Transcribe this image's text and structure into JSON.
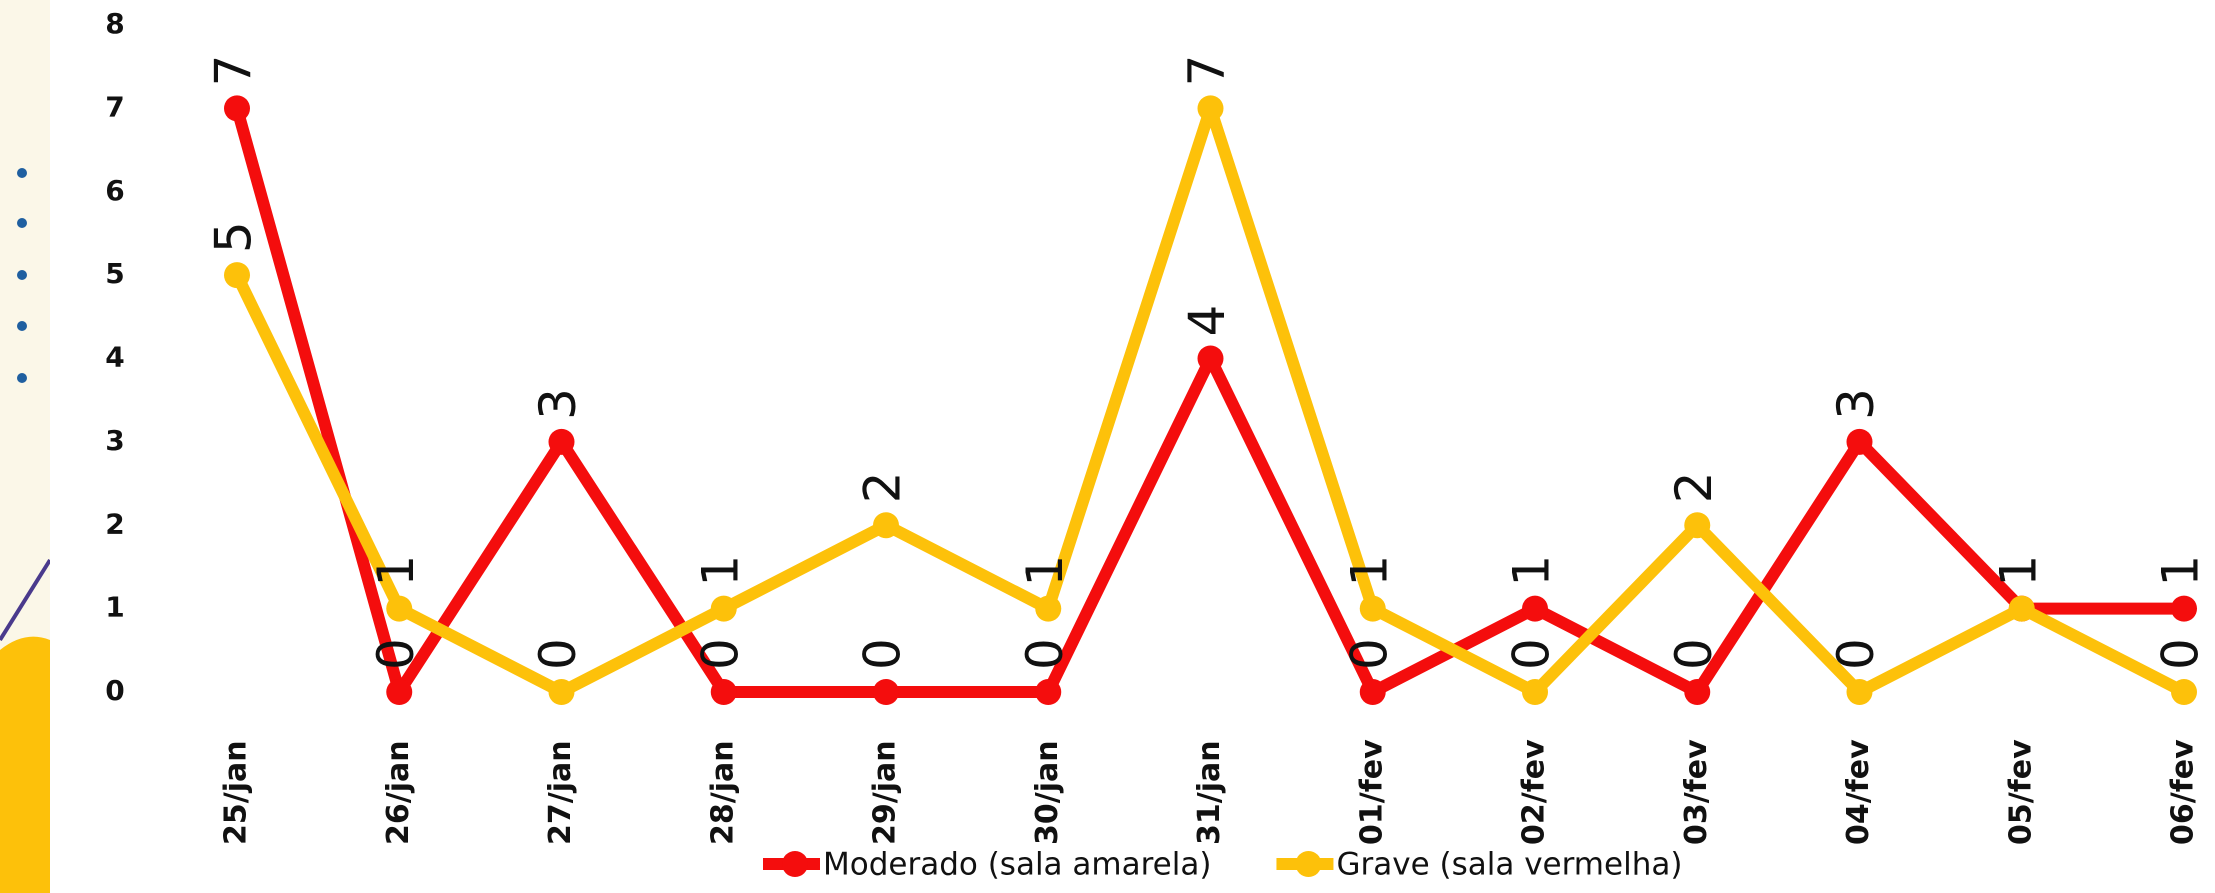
{
  "chart_data": {
    "type": "line",
    "categories": [
      "25/jan",
      "26/jan",
      "27/jan",
      "28/jan",
      "29/jan",
      "30/jan",
      "31/jan",
      "01/fev",
      "02/fev",
      "03/fev",
      "04/fev",
      "05/fev",
      "06/fev"
    ],
    "series": [
      {
        "name": "Moderado (sala amarela)",
        "color": "#f40d0d",
        "values": [
          7,
          0,
          3,
          0,
          0,
          0,
          4,
          0,
          1,
          0,
          3,
          1,
          1
        ]
      },
      {
        "name": "Grave (sala vermelha)",
        "color": "#fdc10a",
        "values": [
          5,
          1,
          0,
          1,
          2,
          1,
          7,
          1,
          0,
          2,
          0,
          1,
          0
        ]
      }
    ],
    "ylim": [
      0,
      8
    ],
    "yticks": [
      0,
      1,
      2,
      3,
      4,
      5,
      6,
      7,
      8
    ],
    "grid": false,
    "legend": "bottom"
  }
}
